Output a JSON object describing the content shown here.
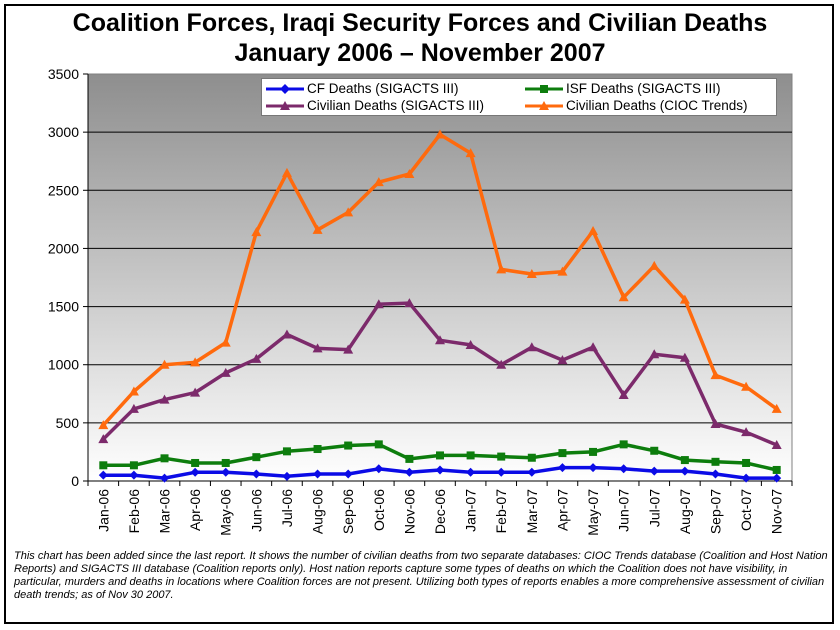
{
  "title_line1": "Coalition Forces, Iraqi Security Forces and Civilian Deaths",
  "title_line2": "January 2006 – November 2007",
  "footnote": "This chart has been added since the last report.  It shows the number of civilian deaths from two separate databases: CIOC Trends database (Coalition and Host Nation Reports) and SIGACTS III database (Coalition reports only).  Host nation reports capture some types of deaths on which the Coalition does not have visibility, in particular, murders and deaths in locations where Coalition forces are not present.  Utilizing both types of reports enables a more comprehensive assessment of civilian death trends; as of Nov 30 2007.",
  "chart_data": {
    "type": "line",
    "title": "Coalition Forces, Iraqi Security Forces and Civilian Deaths January 2006 – November 2007",
    "xlabel": "",
    "ylabel": "",
    "ylim": [
      0,
      3500
    ],
    "yticks": [
      0,
      500,
      1000,
      1500,
      2000,
      2500,
      3000,
      3500
    ],
    "grid": true,
    "legend_position": "top-right",
    "categories": [
      "Jan-06",
      "Feb-06",
      "Mar-06",
      "Apr-06",
      "May-06",
      "Jun-06",
      "Jul-06",
      "Aug-06",
      "Sep-06",
      "Oct-06",
      "Nov-06",
      "Dec-06",
      "Jan-07",
      "Feb-07",
      "Mar-07",
      "Apr-07",
      "May-07",
      "Jun-07",
      "Jul-07",
      "Aug-07",
      "Sep-07",
      "Oct-07",
      "Nov-07"
    ],
    "series": [
      {
        "name": "CF Deaths (SIGACTS III)",
        "color": "#0b0be6",
        "marker": "diamond",
        "values": [
          50,
          50,
          25,
          75,
          75,
          60,
          40,
          60,
          60,
          105,
          75,
          95,
          75,
          75,
          75,
          115,
          115,
          105,
          85,
          85,
          60,
          25,
          25
        ]
      },
      {
        "name": "ISF Deaths (SIGACTS III)",
        "color": "#0d7d0d",
        "marker": "square",
        "values": [
          135,
          135,
          195,
          155,
          155,
          205,
          255,
          275,
          305,
          315,
          190,
          220,
          220,
          210,
          200,
          240,
          250,
          315,
          260,
          180,
          165,
          155,
          95
        ]
      },
      {
        "name": "Civilian Deaths (SIGACTS III)",
        "color": "#7c2a6b",
        "marker": "triangle",
        "values": [
          360,
          620,
          700,
          760,
          930,
          1050,
          1260,
          1140,
          1130,
          1520,
          1530,
          1210,
          1170,
          1000,
          1150,
          1040,
          1150,
          740,
          1090,
          1060,
          490,
          420,
          310
        ]
      },
      {
        "name": "Civilian Deaths (CIOC Trends)",
        "color": "#ff6a0d",
        "marker": "triangle",
        "values": [
          480,
          770,
          1000,
          1020,
          1190,
          2140,
          2650,
          2160,
          2310,
          2570,
          2640,
          2980,
          2820,
          1820,
          1780,
          1800,
          2150,
          1580,
          1850,
          1560,
          910,
          810,
          620
        ]
      }
    ]
  }
}
